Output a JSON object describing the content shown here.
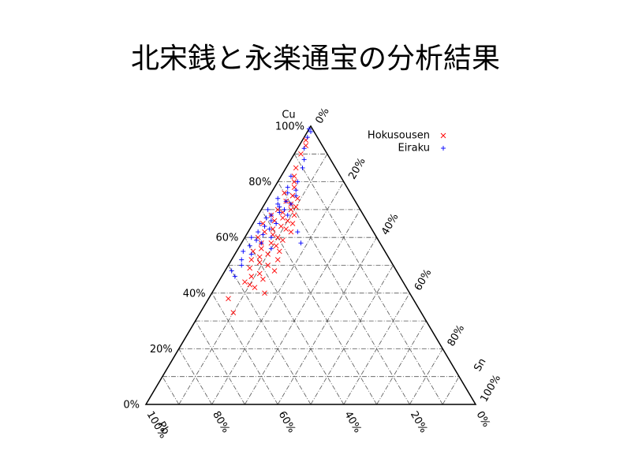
{
  "chart_data": {
    "type": "ternary",
    "title": "北宋銭と永楽通宝の分析結果",
    "axes": {
      "cu": "Cu",
      "sn": "Sn",
      "pb": "Pb"
    },
    "ticks": [
      {
        "value": 0,
        "label": "0%"
      },
      {
        "value": 20,
        "label": "20%"
      },
      {
        "value": 40,
        "label": "40%"
      },
      {
        "value": 60,
        "label": "60%"
      },
      {
        "value": 80,
        "label": "80%"
      },
      {
        "value": 100,
        "label": "100%"
      }
    ],
    "grid": [
      10,
      20,
      30,
      40,
      50,
      60,
      70,
      80,
      90
    ],
    "series": [
      {
        "name": "Hokusousen",
        "color": "#ff0000",
        "marker": "x",
        "cu": [
          95,
          93,
          90,
          85,
          82,
          80,
          78,
          76,
          75,
          74,
          73,
          72,
          71,
          70,
          70,
          69,
          68,
          68,
          67,
          66,
          66,
          65,
          65,
          64,
          63,
          63,
          62,
          62,
          61,
          60,
          60,
          59,
          58,
          58,
          57,
          56,
          55,
          55,
          54,
          53,
          52,
          52,
          51,
          50,
          49,
          48,
          47,
          46,
          45,
          44,
          43,
          42,
          40,
          38,
          33
        ],
        "sn": [
          1,
          2,
          2,
          3,
          4,
          5,
          6,
          4,
          7,
          9,
          6,
          8,
          10,
          5,
          9,
          7,
          11,
          4,
          8,
          10,
          6,
          12,
          3,
          9,
          7,
          11,
          5,
          13,
          8,
          10,
          4,
          12,
          6,
          9,
          11,
          7,
          13,
          5,
          10,
          8,
          14,
          6,
          9,
          12,
          7,
          15,
          11,
          9,
          13,
          8,
          10,
          12,
          16,
          6,
          10
        ]
      },
      {
        "name": "Eiraku",
        "color": "#0000ff",
        "marker": "+",
        "cu": [
          99,
          98,
          96,
          92,
          88,
          85,
          82,
          80,
          78,
          77,
          76,
          75,
          74,
          73,
          72,
          72,
          71,
          70,
          70,
          69,
          68,
          68,
          67,
          66,
          65,
          65,
          64,
          63,
          62,
          61,
          60,
          60,
          59,
          58,
          57,
          56,
          55,
          54,
          52,
          50,
          48,
          46,
          62,
          58
        ],
        "sn": [
          0,
          1,
          1,
          2,
          4,
          5,
          3,
          6,
          4,
          7,
          5,
          8,
          3,
          6,
          4,
          8,
          5,
          7,
          2,
          6,
          4,
          9,
          3,
          5,
          7,
          2,
          4,
          6,
          3,
          5,
          8,
          2,
          4,
          6,
          3,
          10,
          2,
          5,
          3,
          4,
          2,
          4,
          15,
          18
        ]
      }
    ]
  }
}
